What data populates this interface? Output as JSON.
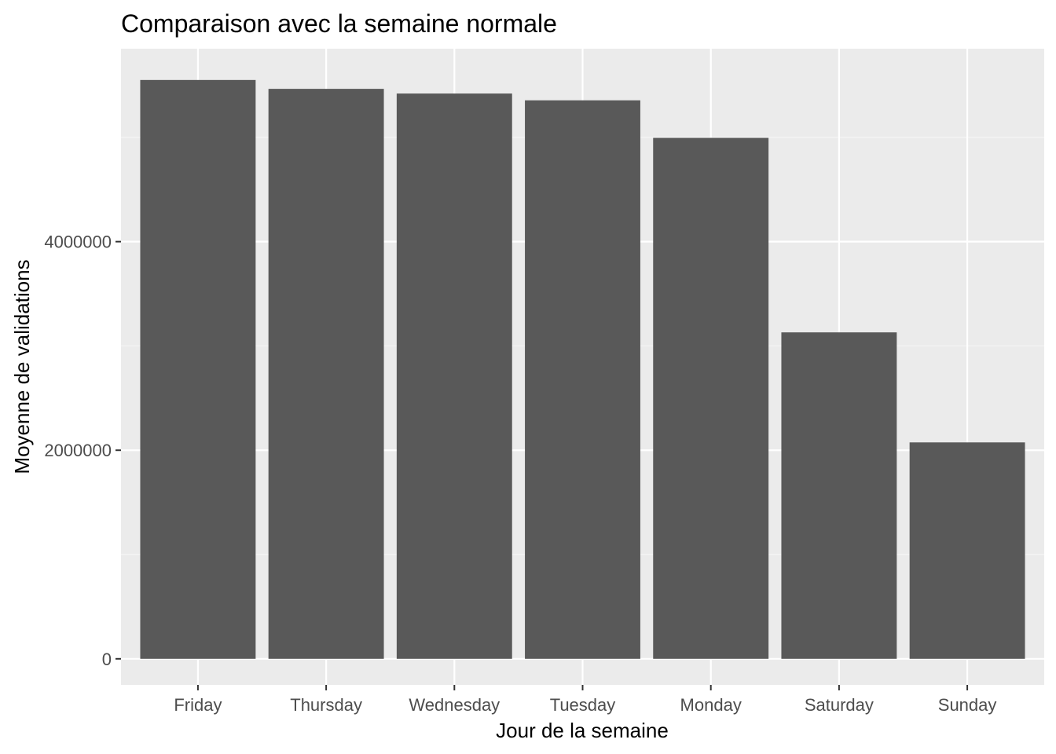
{
  "chart_data": {
    "type": "bar",
    "title": "Comparaison avec la semaine normale",
    "xlabel": "Jour de la semaine",
    "ylabel": "Moyenne de validations",
    "categories": [
      "Friday",
      "Thursday",
      "Wednesday",
      "Tuesday",
      "Monday",
      "Saturday",
      "Sunday"
    ],
    "values": [
      5550000,
      5465000,
      5420000,
      5355000,
      4995000,
      3130000,
      2075000
    ],
    "ylim": [
      -250000,
      5850000
    ],
    "y_ticks": [
      0,
      2000000,
      4000000
    ],
    "y_tick_labels": [
      "0",
      "2000000",
      "4000000"
    ],
    "grid": true,
    "legend": "none",
    "colors": {
      "bar": "#595959",
      "panel": "#ebebeb",
      "grid_major": "#ffffff",
      "grid_minor": "#f5f5f5",
      "tick": "#333333",
      "tick_label": "#4d4d4d"
    }
  }
}
